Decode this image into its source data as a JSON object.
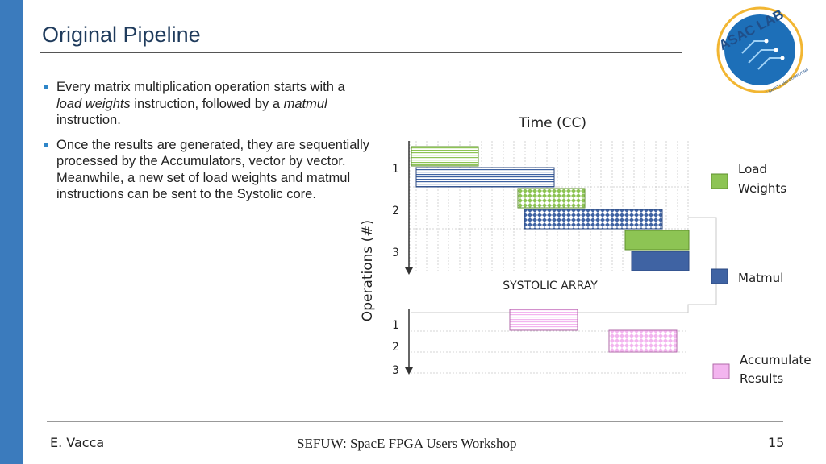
{
  "slide": {
    "title": "Original Pipeline",
    "bullets": [
      {
        "parts": [
          {
            "text": "Every matrix multiplication operation starts with a ",
            "italic": false
          },
          {
            "text": "load weights",
            "italic": true
          },
          {
            "text": " instruction, followed by a ",
            "italic": false
          },
          {
            "text": "matmul",
            "italic": true
          },
          {
            "text": " instruction.",
            "italic": false
          }
        ]
      },
      {
        "parts": [
          {
            "text": "Once the results are generated, they are sequentially processed by the Accumulators, vector by vector. Meanwhile, a new set of load weights and matmul instructions can be sent to the Systolic core.",
            "italic": false
          }
        ]
      }
    ]
  },
  "logo": {
    "text": "ASAC LAB",
    "subtext": "AEROSPACE SAFETY AND COMPUTING LAB",
    "colors": {
      "circle": "#1d6fb8",
      "ring": "#f2b632",
      "text": "#1f4f8a"
    }
  },
  "diagram": {
    "x_axis_label": "Time (CC)",
    "y_axis_label": "Operations (#)",
    "systolic_label": "SYSTOLIC ARRAY",
    "top_rows": [
      "1",
      "2",
      "3"
    ],
    "bottom_rows": [
      "1",
      "2",
      "3"
    ],
    "legend": [
      {
        "label_lines": [
          "Load",
          "Weights"
        ],
        "color": "#8dc454",
        "key": "load"
      },
      {
        "label_lines": [
          "Matmul"
        ],
        "color": "#3f63a3",
        "key": "matmul"
      },
      {
        "label_lines": [
          "Accumulate",
          "Results"
        ],
        "color": "#f3b5ef",
        "key": "accumulate"
      }
    ],
    "colors": {
      "load": "#8dc454",
      "matmul": "#3f63a3",
      "accumulate": "#f3b5ef",
      "grid": "#c9c9c9"
    }
  },
  "footer": {
    "author": "E. Vacca",
    "event": "SEFUW: SpacE FPGA Users Workshop",
    "page": "15"
  }
}
